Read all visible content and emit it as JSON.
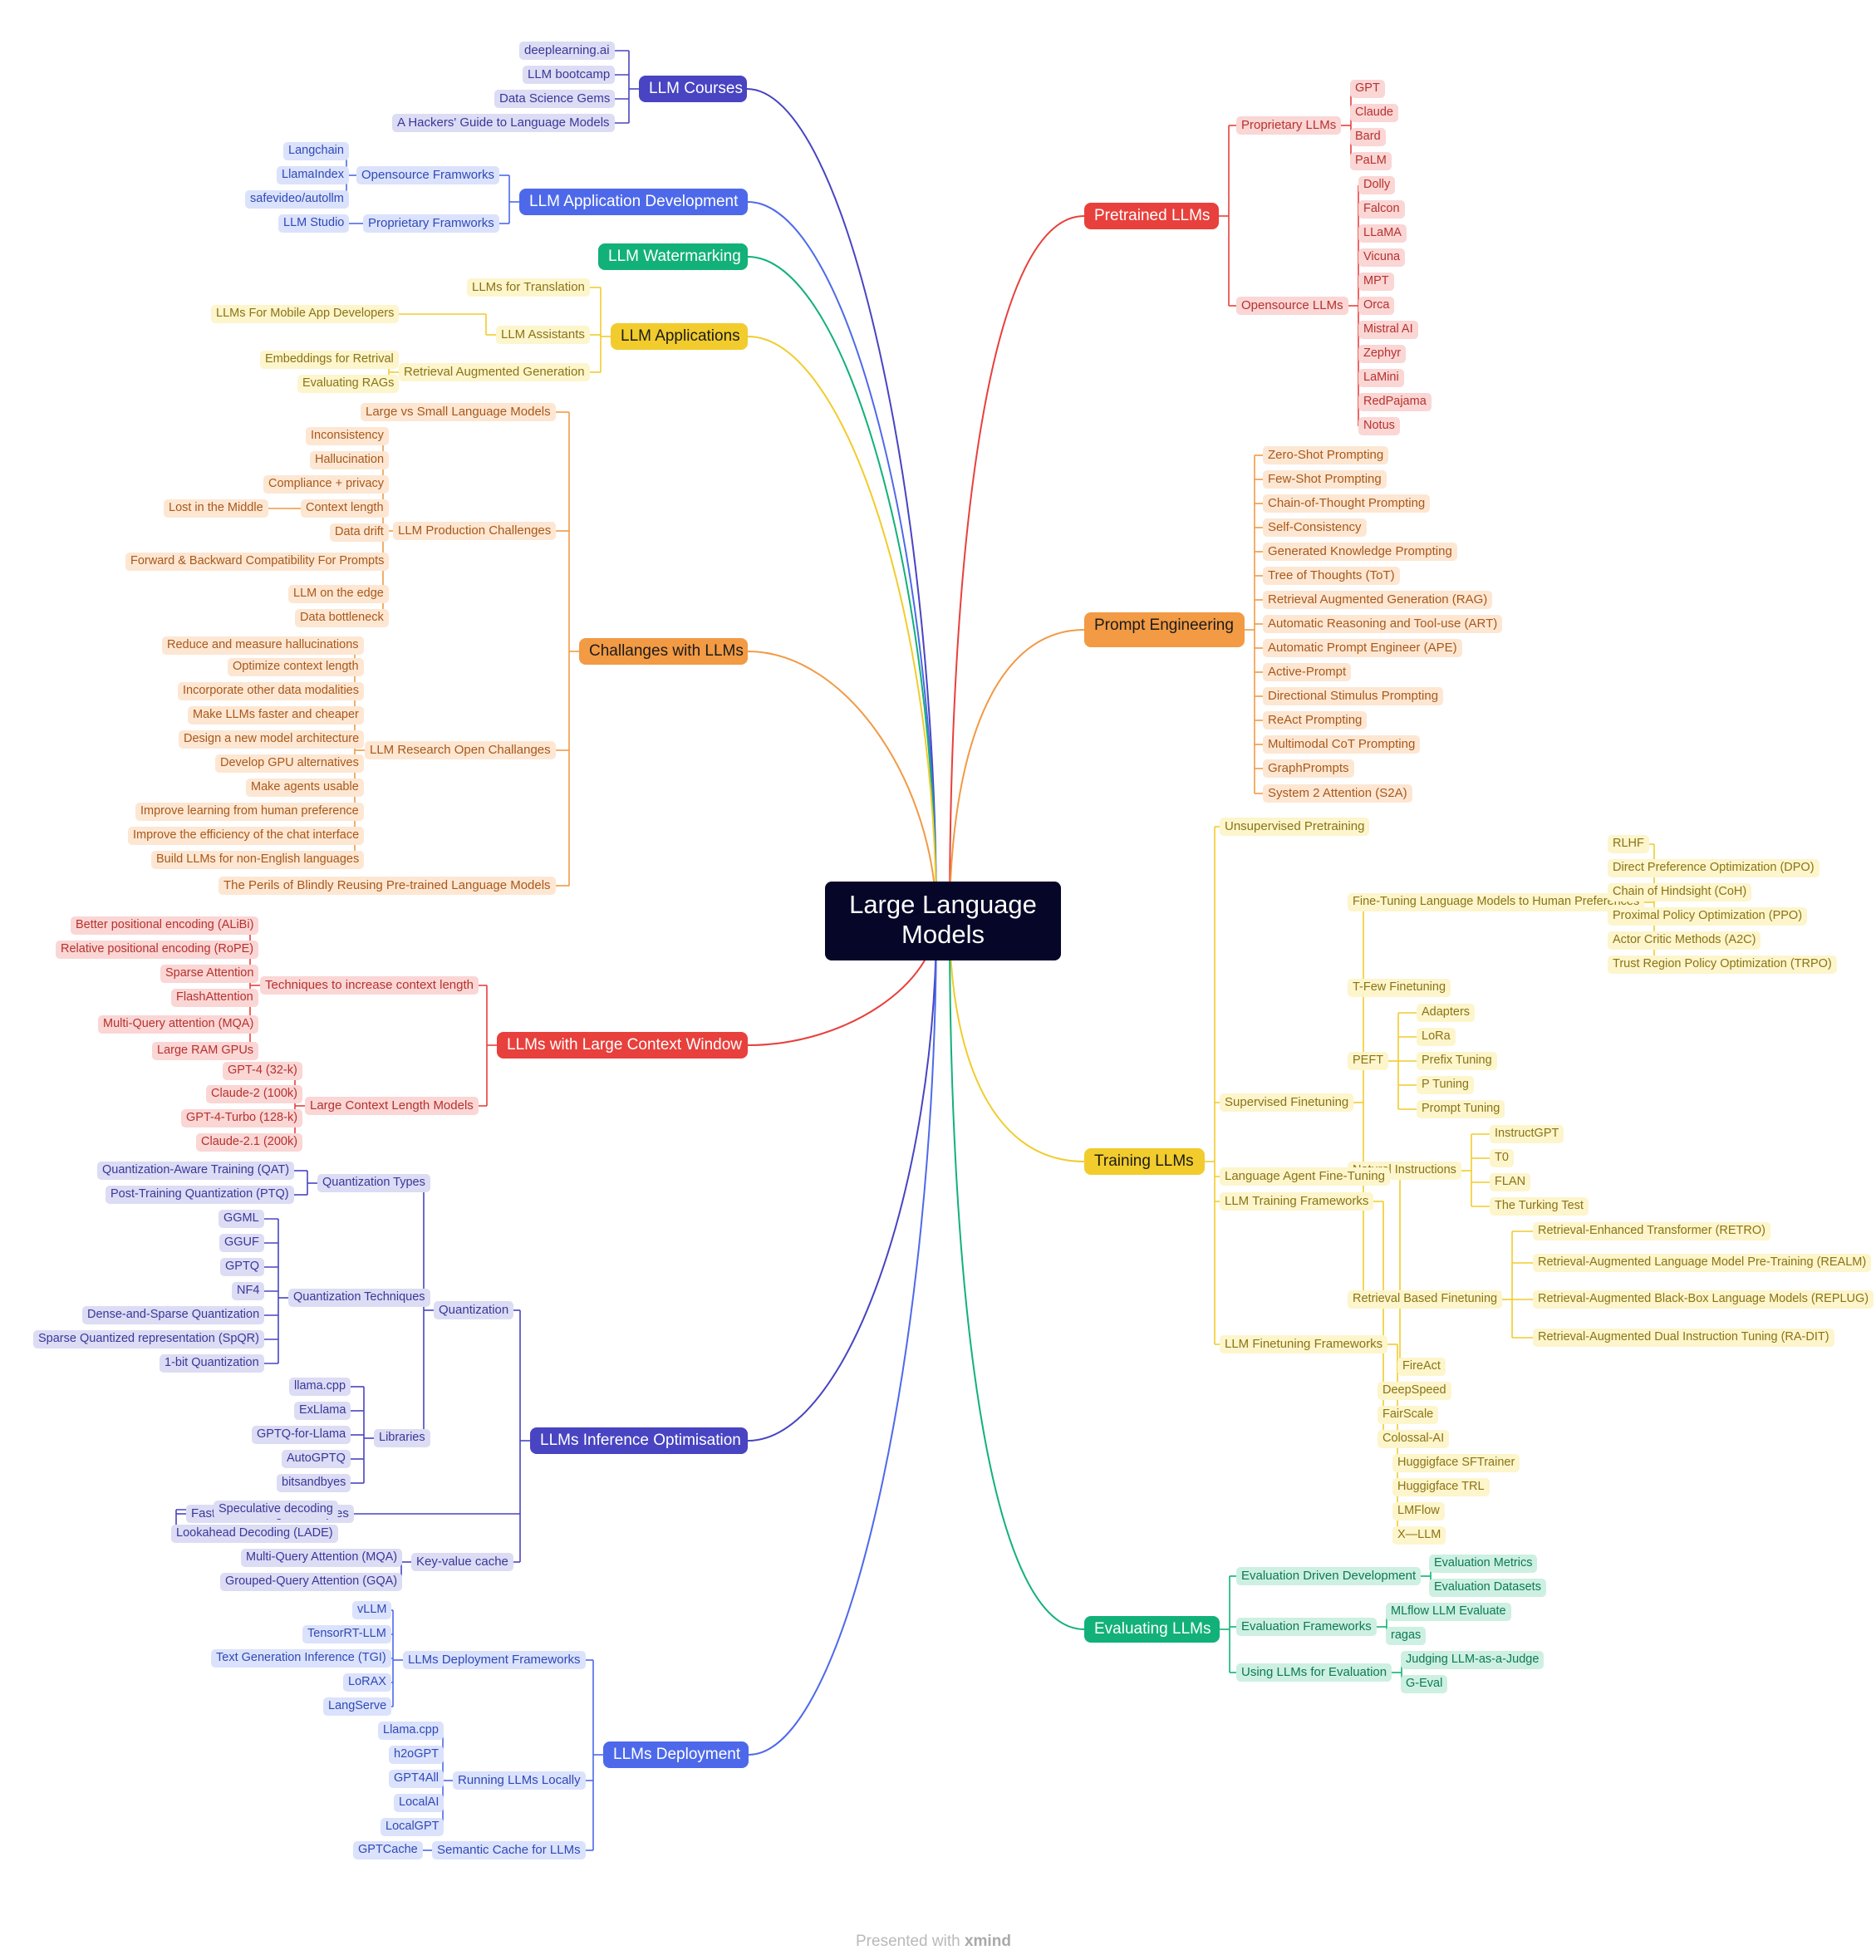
{
  "center": "Large Language Models",
  "watermark": {
    "prefix": "Presented with",
    "brand": "xmind"
  },
  "colors": {
    "red": "#e8403c",
    "orange": "#f29a44",
    "yellow": "#f1cc2c",
    "green": "#12b179",
    "indigo": "#4844c2",
    "blue": "#4d69ea"
  },
  "branches": [
    {
      "name": "LLM Courses",
      "color": "indigo",
      "children": [
        {
          "name": "deeplearning.ai"
        },
        {
          "name": "LLM bootcamp"
        },
        {
          "name": "Data Science Gems"
        },
        {
          "name": "A Hackers' Guide to Language Models"
        }
      ]
    },
    {
      "name": "LLM Application Development",
      "color": "blue",
      "children": [
        {
          "name": "Opensource Framworks",
          "children": [
            {
              "name": "Langchain"
            },
            {
              "name": "LlamaIndex"
            },
            {
              "name": "safevideo/autollm"
            }
          ]
        },
        {
          "name": "Proprietary Framworks",
          "children": [
            {
              "name": "LLM Studio"
            }
          ]
        }
      ]
    },
    {
      "name": "LLM Watermarking",
      "color": "green",
      "children": []
    },
    {
      "name": "LLM Applications",
      "color": "yellow",
      "children": [
        {
          "name": "LLMs for Translation"
        },
        {
          "name": "LLM Assistants",
          "children": [
            {
              "name": "LLMs For Mobile App Developers"
            }
          ]
        },
        {
          "name": "Retrieval Augmented Generation",
          "children": [
            {
              "name": "Embeddings for Retrival"
            },
            {
              "name": "Evaluating RAGs"
            }
          ]
        }
      ]
    },
    {
      "name": "Challanges with LLMs",
      "color": "orange",
      "children": [
        {
          "name": "Large vs Small Language Models"
        },
        {
          "name": "LLM Production Challenges",
          "children": [
            {
              "name": "Inconsistency"
            },
            {
              "name": "Hallucination"
            },
            {
              "name": "Compliance + privacy"
            },
            {
              "name": "Context length",
              "children": [
                {
                  "name": "Lost in the Middle"
                }
              ]
            },
            {
              "name": "Data drift"
            },
            {
              "name": "Forward & Backward Compatibility For Prompts"
            },
            {
              "name": "LLM on the edge"
            },
            {
              "name": "Data bottleneck"
            }
          ]
        },
        {
          "name": "LLM Research Open Challanges",
          "children": [
            {
              "name": "Reduce and measure hallucinations"
            },
            {
              "name": "Optimize context length"
            },
            {
              "name": "Incorporate other data modalities"
            },
            {
              "name": "Make LLMs faster and cheaper"
            },
            {
              "name": "Design a new model architecture"
            },
            {
              "name": "Develop GPU alternatives"
            },
            {
              "name": "Make agents usable"
            },
            {
              "name": "Improve learning from human preference"
            },
            {
              "name": "Improve the efficiency of the chat interface"
            },
            {
              "name": "Build LLMs for non-English languages"
            }
          ]
        },
        {
          "name": "The Perils of Blindly Reusing Pre-trained Language Models"
        }
      ]
    },
    {
      "name": "LLMs with Large Context Window",
      "color": "red",
      "children": [
        {
          "name": "Techniques to increase context length",
          "children": [
            {
              "name": "Better positional encoding (ALiBi)"
            },
            {
              "name": "Relative positional encoding (RoPE)"
            },
            {
              "name": "Sparse Attention"
            },
            {
              "name": "FlashAttention"
            },
            {
              "name": "Multi-Query attention (MQA)"
            },
            {
              "name": "Large RAM GPUs"
            }
          ]
        },
        {
          "name": "Large Context Length Models",
          "children": [
            {
              "name": "GPT-4 (32-k)"
            },
            {
              "name": "Claude-2 (100k)"
            },
            {
              "name": "GPT-4-Turbo (128-k)"
            },
            {
              "name": "Claude-2.1 (200k)"
            }
          ]
        }
      ]
    },
    {
      "name": "LLMs Inference Optimisation",
      "color": "indigo",
      "children": [
        {
          "name": "Quantization",
          "children": [
            {
              "name": "Quantization Types",
              "children": [
                {
                  "name": "Quantization-Aware Training (QAT)"
                },
                {
                  "name": "Post-Training Quantization (PTQ)"
                }
              ]
            },
            {
              "name": "Quantization Techniques",
              "children": [
                {
                  "name": "GGML"
                },
                {
                  "name": "GGUF"
                },
                {
                  "name": "GPTQ"
                },
                {
                  "name": "NF4"
                },
                {
                  "name": "Dense-and-Sparse Quantization"
                },
                {
                  "name": "Sparse Quantized representation (SpQR)"
                },
                {
                  "name": "1-bit Quantization"
                }
              ]
            },
            {
              "name": "Libraries",
              "children": [
                {
                  "name": "llama.cpp"
                },
                {
                  "name": "ExLlama"
                },
                {
                  "name": "GPTQ-for-Llama"
                },
                {
                  "name": "AutoGPTQ"
                },
                {
                  "name": "bitsandbyes"
                }
              ]
            }
          ]
        },
        {
          "name": "Faster Decoding Techniques",
          "children": [
            {
              "name": "Speculative decoding"
            },
            {
              "name": "Lookahead Decoding (LADE)"
            }
          ]
        },
        {
          "name": "Key-value cache",
          "children": [
            {
              "name": "Multi-Query Attention (MQA)"
            },
            {
              "name": "Grouped-Query Attention (GQA)"
            }
          ]
        }
      ]
    },
    {
      "name": "LLMs Deployment",
      "color": "blue",
      "children": [
        {
          "name": "LLMs Deployment Frameworks",
          "children": [
            {
              "name": "vLLM"
            },
            {
              "name": "TensorRT-LLM"
            },
            {
              "name": "Text Generation Inference (TGI)"
            },
            {
              "name": "LoRAX"
            },
            {
              "name": "LangServe"
            }
          ]
        },
        {
          "name": "Running LLMs Locally",
          "children": [
            {
              "name": "Llama.cpp"
            },
            {
              "name": "h2oGPT"
            },
            {
              "name": "GPT4All"
            },
            {
              "name": "LocalAI"
            },
            {
              "name": "LocalGPT"
            }
          ]
        },
        {
          "name": "Semantic Cache for LLMs",
          "children": [
            {
              "name": "GPTCache"
            }
          ]
        }
      ]
    },
    {
      "name": "Pretrained LLMs",
      "color": "red",
      "children": [
        {
          "name": "Proprietary LLMs",
          "children": [
            {
              "name": "GPT"
            },
            {
              "name": "Claude"
            },
            {
              "name": "Bard"
            },
            {
              "name": "PaLM"
            }
          ]
        },
        {
          "name": "Opensource LLMs",
          "children": [
            {
              "name": "Dolly"
            },
            {
              "name": "Falcon"
            },
            {
              "name": "LLaMA"
            },
            {
              "name": "Vicuna"
            },
            {
              "name": "MPT"
            },
            {
              "name": "Orca"
            },
            {
              "name": "Mistral AI"
            },
            {
              "name": "Zephyr"
            },
            {
              "name": "LaMini"
            },
            {
              "name": "RedPajama"
            },
            {
              "name": "Notus"
            }
          ]
        }
      ]
    },
    {
      "name": "Prompt Engineering",
      "color": "orange",
      "children": [
        {
          "name": "Zero-Shot Prompting"
        },
        {
          "name": "Few-Shot Prompting"
        },
        {
          "name": "Chain-of-Thought Prompting"
        },
        {
          "name": "Self-Consistency"
        },
        {
          "name": "Generated Knowledge Prompting"
        },
        {
          "name": "Tree of Thoughts (ToT)"
        },
        {
          "name": "Retrieval Augmented Generation (RAG)"
        },
        {
          "name": "Automatic Reasoning and Tool-use (ART)"
        },
        {
          "name": "Automatic Prompt Engineer (APE)"
        },
        {
          "name": "Active-Prompt"
        },
        {
          "name": "Directional Stimulus Prompting"
        },
        {
          "name": "ReAct Prompting"
        },
        {
          "name": "Multimodal CoT Prompting"
        },
        {
          "name": "GraphPrompts"
        },
        {
          "name": "System 2 Attention (S2A)"
        }
      ]
    },
    {
      "name": "Training LLMs",
      "color": "yellow",
      "children": [
        {
          "name": "Unsupervised Pretraining"
        },
        {
          "name": "Supervised Finetuning",
          "children": [
            {
              "name": "Fine-Tuning Language Models to Human Preferences",
              "children": [
                {
                  "name": "RLHF"
                },
                {
                  "name": "Direct Preference Optimization (DPO)"
                },
                {
                  "name": "Chain of Hindsight (CoH)"
                },
                {
                  "name": "Proximal Policy Optimization (PPO)"
                },
                {
                  "name": "Actor Critic Methods (A2C)"
                },
                {
                  "name": "Trust Region Policy Optimization (TRPO)"
                }
              ]
            },
            {
              "name": "T-Few Finetuning"
            },
            {
              "name": "PEFT",
              "children": [
                {
                  "name": "Adapters"
                },
                {
                  "name": "LoRa"
                },
                {
                  "name": "Prefix Tuning"
                },
                {
                  "name": "P Tuning"
                },
                {
                  "name": "Prompt Tuning"
                }
              ]
            },
            {
              "name": "Natural Instructions",
              "children": [
                {
                  "name": "InstructGPT"
                },
                {
                  "name": "T0"
                },
                {
                  "name": "FLAN"
                },
                {
                  "name": "The Turking Test"
                }
              ]
            },
            {
              "name": "Retrieval Based Finetuning",
              "children": [
                {
                  "name": "Retrieval-Enhanced Transformer (RETRO)"
                },
                {
                  "name": "Retrieval-Augmented Language Model Pre-Training (REALM)"
                },
                {
                  "name": "Retrieval-Augmented Black-Box Language Models (REPLUG)"
                },
                {
                  "name": "Retrieval-Augmented Dual Instruction Tuning (RA-DIT)"
                }
              ]
            }
          ]
        },
        {
          "name": "Language Agent Fine-Tuning",
          "children": [
            {
              "name": "FireAct"
            }
          ]
        },
        {
          "name": "LLM Training Frameworks",
          "children": [
            {
              "name": "DeepSpeed"
            },
            {
              "name": "FairScale"
            },
            {
              "name": "Colossal-AI"
            }
          ]
        },
        {
          "name": "LLM Finetuning Frameworks",
          "children": [
            {
              "name": "Huggigface SFTrainer"
            },
            {
              "name": "Huggigface TRL"
            },
            {
              "name": "LMFlow"
            },
            {
              "name": "X—LLM"
            }
          ]
        }
      ]
    },
    {
      "name": "Evaluating LLMs",
      "color": "green",
      "children": [
        {
          "name": "Evaluation Driven Development",
          "children": [
            {
              "name": "Evaluation Metrics"
            },
            {
              "name": "Evaluation Datasets"
            }
          ]
        },
        {
          "name": "Evaluation Frameworks",
          "children": [
            {
              "name": "MLflow LLM Evaluate"
            },
            {
              "name": "ragas"
            }
          ]
        },
        {
          "name": "Using LLMs for Evaluation",
          "children": [
            {
              "name": "Judging LLM-as-a-Judge"
            },
            {
              "name": "G-Eval"
            }
          ]
        }
      ]
    }
  ]
}
